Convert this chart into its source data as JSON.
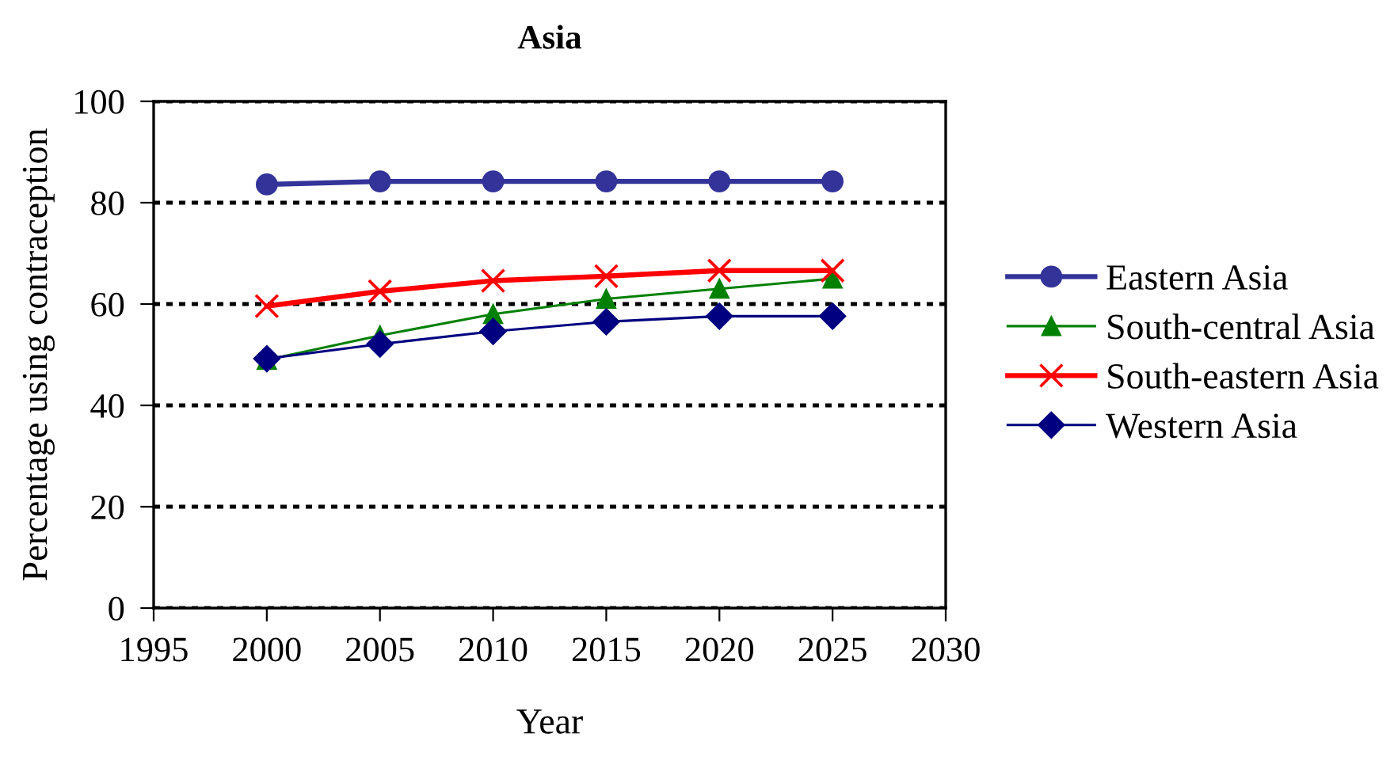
{
  "chart_data": {
    "type": "line",
    "title": "Asia",
    "xlabel": "Year",
    "ylabel": "Percentage using contraception",
    "x": [
      2000,
      2005,
      2010,
      2015,
      2020,
      2025
    ],
    "series": [
      {
        "name": "Eastern Asia",
        "color": "#333399",
        "marker": "circle",
        "values": [
          83.6,
          84.2,
          84.2,
          84.2,
          84.2,
          84.2
        ]
      },
      {
        "name": "South-central Asia",
        "color": "#008000",
        "marker": "triangle",
        "values": [
          49.0,
          53.8,
          58.0,
          61.0,
          63.0,
          65.0
        ]
      },
      {
        "name": "South-eastern Asia",
        "color": "#ff0000",
        "marker": "cross",
        "values": [
          59.6,
          62.5,
          64.6,
          65.5,
          66.6,
          66.6
        ]
      },
      {
        "name": "Western Asia",
        "color": "#000080",
        "marker": "diamond",
        "values": [
          49.2,
          52.1,
          54.6,
          56.5,
          57.6,
          57.6
        ]
      }
    ],
    "xlim": [
      1995,
      2030
    ],
    "xticks": [
      1995,
      2000,
      2005,
      2010,
      2015,
      2020,
      2025,
      2030
    ],
    "ylim": [
      0,
      100
    ],
    "yticks": [
      0,
      20,
      40,
      60,
      80,
      100
    ],
    "grid": "y",
    "legend": "right",
    "line_style": "solid"
  }
}
